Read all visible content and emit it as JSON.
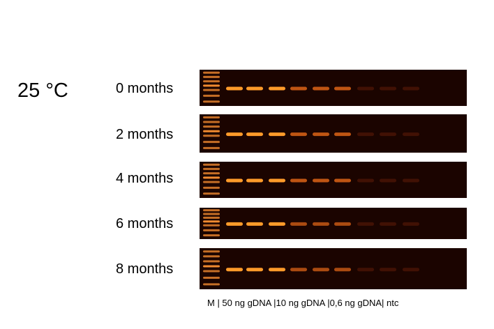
{
  "temperature_label": "25 °C",
  "lane_caption": "M | 50 ng gDNA |10 ng gDNA |0,6 ng gDNA| ntc",
  "colors": {
    "gel_background": "#1b0400",
    "band_strong": "#ff9b2a",
    "band_medium": "#e86a18",
    "band_faint": "#8a2a0c",
    "ladder": "#f08a30"
  },
  "gel_rows": [
    {
      "label": "0 months",
      "band_intensity": [
        1.0,
        1.0,
        1.0,
        0.6,
        0.6,
        0.6,
        0.15,
        0.15,
        0.12,
        0.0
      ]
    },
    {
      "label": "2 months",
      "band_intensity": [
        1.0,
        1.0,
        1.0,
        0.6,
        0.6,
        0.6,
        0.15,
        0.15,
        0.12,
        0.0
      ]
    },
    {
      "label": "4 months",
      "band_intensity": [
        1.0,
        1.0,
        1.0,
        0.6,
        0.6,
        0.6,
        0.15,
        0.15,
        0.12,
        0.0
      ]
    },
    {
      "label": "6 months",
      "band_intensity": [
        0.9,
        0.9,
        0.9,
        0.5,
        0.5,
        0.5,
        0.12,
        0.12,
        0.1,
        0.0
      ]
    },
    {
      "label": "8 months",
      "band_intensity": [
        0.9,
        0.9,
        0.9,
        0.5,
        0.5,
        0.5,
        0.12,
        0.12,
        0.1,
        0.0
      ]
    }
  ]
}
